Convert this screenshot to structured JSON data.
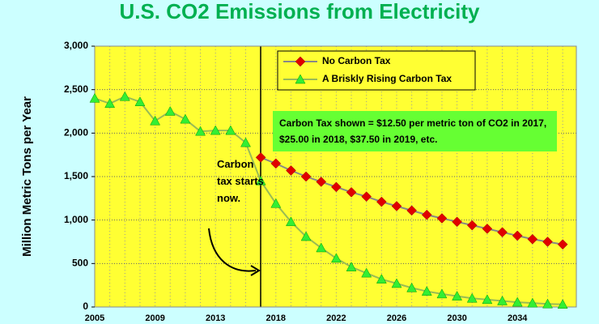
{
  "chart_data": {
    "type": "line",
    "title": "U.S. CO2 Emissions from Electricity",
    "y_label": "Million Metric Tons per Year",
    "categories": [
      "2005",
      null,
      null,
      null,
      "2009",
      null,
      null,
      null,
      "2013",
      null,
      null,
      null,
      "2018",
      null,
      null,
      null,
      "2022",
      null,
      null,
      null,
      "2026",
      null,
      null,
      null,
      "2030",
      null,
      null,
      null,
      "2034",
      null,
      null,
      null
    ],
    "series": [
      {
        "name": "No Carbon Tax",
        "color": "#e00000",
        "marker": "diamond",
        "values": [
          null,
          null,
          null,
          null,
          null,
          null,
          null,
          null,
          null,
          null,
          null,
          1720,
          1650,
          1570,
          1500,
          1440,
          1380,
          1320,
          1270,
          1210,
          1160,
          1110,
          1060,
          1020,
          980,
          940,
          900,
          860,
          820,
          780,
          750,
          720
        ]
      },
      {
        "name": "A Briskly Rising Carbon Tax",
        "color": "#33ee33",
        "marker": "triangle",
        "values": [
          2400,
          2340,
          2420,
          2360,
          2140,
          2250,
          2160,
          2020,
          2030,
          2030,
          1890,
          1450,
          1190,
          980,
          810,
          680,
          560,
          460,
          390,
          320,
          270,
          220,
          180,
          150,
          125,
          100,
          85,
          70,
          55,
          45,
          35,
          30
        ]
      }
    ],
    "ylim": [
      0,
      3000
    ],
    "yticks": [
      0,
      500,
      {
        "value": 1000,
        "label": "1,000"
      },
      {
        "value": 1500,
        "label": "1,500"
      },
      {
        "value": 2000,
        "label": "2,000"
      },
      {
        "value": 2500,
        "label": "2,500"
      },
      {
        "value": 3000,
        "label": "3,000"
      }
    ],
    "grid": true,
    "annotations": [
      "Carbon tax starts now.",
      "Carbon Tax shown = $12.50 per metric ton of CO2 in 2017, $25.00 in 2018, $37.50 in 2019, etc."
    ]
  }
}
